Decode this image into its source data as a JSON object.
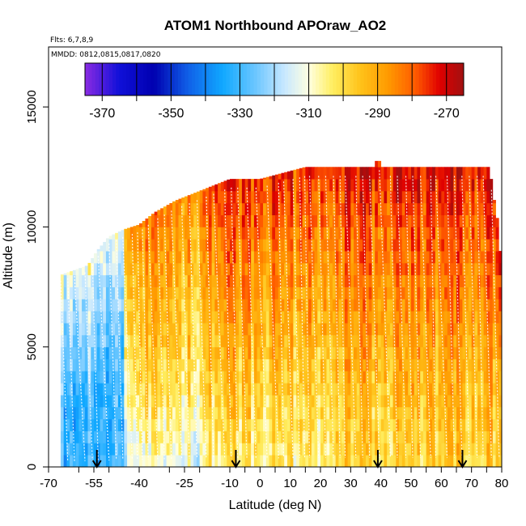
{
  "chart_data": {
    "type": "heatmap",
    "title": "ATOM1 Northbound APOraw_AO2",
    "flights_note": "Flts: 6,7,8,9",
    "dates_note": "MMDD: 0812,0815,0817,0820",
    "xlabel": "Latitude (deg N)",
    "ylabel": "Altitude (m)",
    "xlim": [
      -70,
      80
    ],
    "ylim": [
      0,
      17500
    ],
    "x_ticks": [
      -70,
      -60,
      -55,
      -50,
      -40,
      -30,
      -25,
      -20,
      -10,
      -5,
      0,
      5,
      10,
      15,
      20,
      25,
      30,
      35,
      40,
      45,
      50,
      55,
      60,
      65,
      70,
      75,
      80
    ],
    "x_tick_labels": [
      {
        "value": -70,
        "label": "-70"
      },
      {
        "value": -55,
        "label": "-55"
      },
      {
        "value": -40,
        "label": "-40"
      },
      {
        "value": -25,
        "label": "-25"
      },
      {
        "value": -10,
        "label": "-10"
      },
      {
        "value": 0,
        "label": "0"
      },
      {
        "value": 10,
        "label": "10"
      },
      {
        "value": 20,
        "label": "20"
      },
      {
        "value": 30,
        "label": "30"
      },
      {
        "value": 40,
        "label": "40"
      },
      {
        "value": 50,
        "label": "50"
      },
      {
        "value": 60,
        "label": "60"
      },
      {
        "value": 70,
        "label": "70"
      },
      {
        "value": 80,
        "label": "80"
      }
    ],
    "y_ticks": [
      {
        "value": 0,
        "label": "0"
      },
      {
        "value": 5000,
        "label": "5000"
      },
      {
        "value": 10000,
        "label": "10000"
      },
      {
        "value": 15000,
        "label": "15000"
      }
    ],
    "colorbar": {
      "range": [
        -375,
        -265
      ],
      "tick_labels": [
        {
          "value": -370,
          "label": "-370"
        },
        {
          "value": -350,
          "label": "-350"
        },
        {
          "value": -330,
          "label": "-330"
        },
        {
          "value": -310,
          "label": "-310"
        },
        {
          "value": -290,
          "label": "-290"
        },
        {
          "value": -270,
          "label": "-270"
        }
      ],
      "minor_ticks": [
        -360,
        -340,
        -320,
        -300,
        -280
      ],
      "stops": [
        {
          "value": -375,
          "color": "#8a2be2"
        },
        {
          "value": -365,
          "color": "#1010d8"
        },
        {
          "value": -355,
          "color": "#0000b0"
        },
        {
          "value": -345,
          "color": "#1060e8"
        },
        {
          "value": -335,
          "color": "#10a8ff"
        },
        {
          "value": -325,
          "color": "#70c8ff"
        },
        {
          "value": -317,
          "color": "#c8e8ff"
        },
        {
          "value": -310,
          "color": "#ffffe0"
        },
        {
          "value": -303,
          "color": "#ffee60"
        },
        {
          "value": -295,
          "color": "#ffc21a"
        },
        {
          "value": -287,
          "color": "#ff9a00"
        },
        {
          "value": -279,
          "color": "#ff5a00"
        },
        {
          "value": -272,
          "color": "#e00000"
        },
        {
          "value": -265,
          "color": "#a01010"
        }
      ]
    },
    "flight_markers_lat": [
      -54,
      -8,
      39,
      67
    ],
    "column_top_envelope": [
      {
        "lat": -66,
        "top_m": 8000
      },
      {
        "lat": -57,
        "top_m": 8400
      },
      {
        "lat": -54,
        "top_m": 9000
      },
      {
        "lat": -50,
        "top_m": 9600
      },
      {
        "lat": -45,
        "top_m": 9900
      },
      {
        "lat": -40,
        "top_m": 10100
      },
      {
        "lat": -35,
        "top_m": 10600
      },
      {
        "lat": -28,
        "top_m": 11100
      },
      {
        "lat": -20,
        "top_m": 11500
      },
      {
        "lat": -10,
        "top_m": 12000
      },
      {
        "lat": 0,
        "top_m": 12000
      },
      {
        "lat": 15,
        "top_m": 12500
      },
      {
        "lat": 38,
        "top_m": 12500
      },
      {
        "lat": 39,
        "top_m": 13000
      },
      {
        "lat": 40,
        "top_m": 12500
      },
      {
        "lat": 76,
        "top_m": 12500
      },
      {
        "lat": 77,
        "top_m": 11500
      },
      {
        "lat": 79,
        "top_m": 10000
      },
      {
        "lat": 80,
        "top_m": 8000
      }
    ],
    "value_profile_summary": [
      {
        "lat_range": [
          -66,
          -45
        ],
        "surface_to_8000m": -330,
        "near_top": -310
      },
      {
        "lat_range": [
          -45,
          -20
        ],
        "surface_to_3000m": -312,
        "mid": -300,
        "near_top": -285
      },
      {
        "lat_range": [
          -20,
          20
        ],
        "surface_to_3000m": -305,
        "mid": -295,
        "near_top": -275
      },
      {
        "lat_range": [
          20,
          60
        ],
        "surface_to_3000m": -300,
        "mid": -292,
        "near_top": -272
      },
      {
        "lat_range": [
          60,
          80
        ],
        "surface_to_3000m": -298,
        "mid": -290,
        "near_top": -270
      }
    ]
  }
}
